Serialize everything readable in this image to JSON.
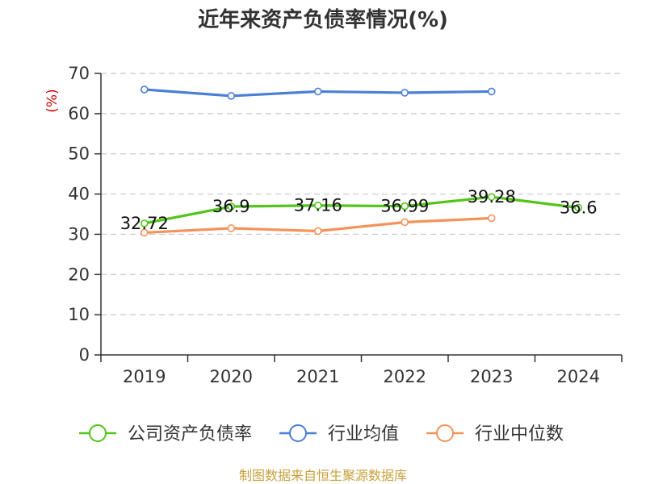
{
  "chart_data": {
    "type": "line",
    "title": "近年来资产负债率情况(%)",
    "ylabel": "(%)",
    "xlabel": "",
    "categories": [
      "2019",
      "2020",
      "2021",
      "2022",
      "2023",
      "2024"
    ],
    "ylim": [
      0,
      70
    ],
    "yticks": [
      0,
      10,
      20,
      30,
      40,
      50,
      60,
      70
    ],
    "grid": true,
    "legend_position": "bottom",
    "series": [
      {
        "name": "公司资产负债率",
        "color": "#52c41a",
        "values": [
          32.72,
          36.9,
          37.16,
          36.99,
          39.28,
          36.6
        ],
        "labels": [
          "32.72",
          "36.9",
          "37.16",
          "36.99",
          "39.28",
          "36.6"
        ],
        "show_labels": true
      },
      {
        "name": "行业均值",
        "color": "#4a7fd6",
        "values": [
          66.0,
          64.4,
          65.5,
          65.2,
          65.5,
          null
        ],
        "show_labels": false
      },
      {
        "name": "行业中位数",
        "color": "#f5925a",
        "values": [
          30.4,
          31.5,
          30.8,
          33.0,
          34.0,
          null
        ],
        "show_labels": false
      }
    ],
    "source": "制图数据来自恒生聚源数据库"
  }
}
